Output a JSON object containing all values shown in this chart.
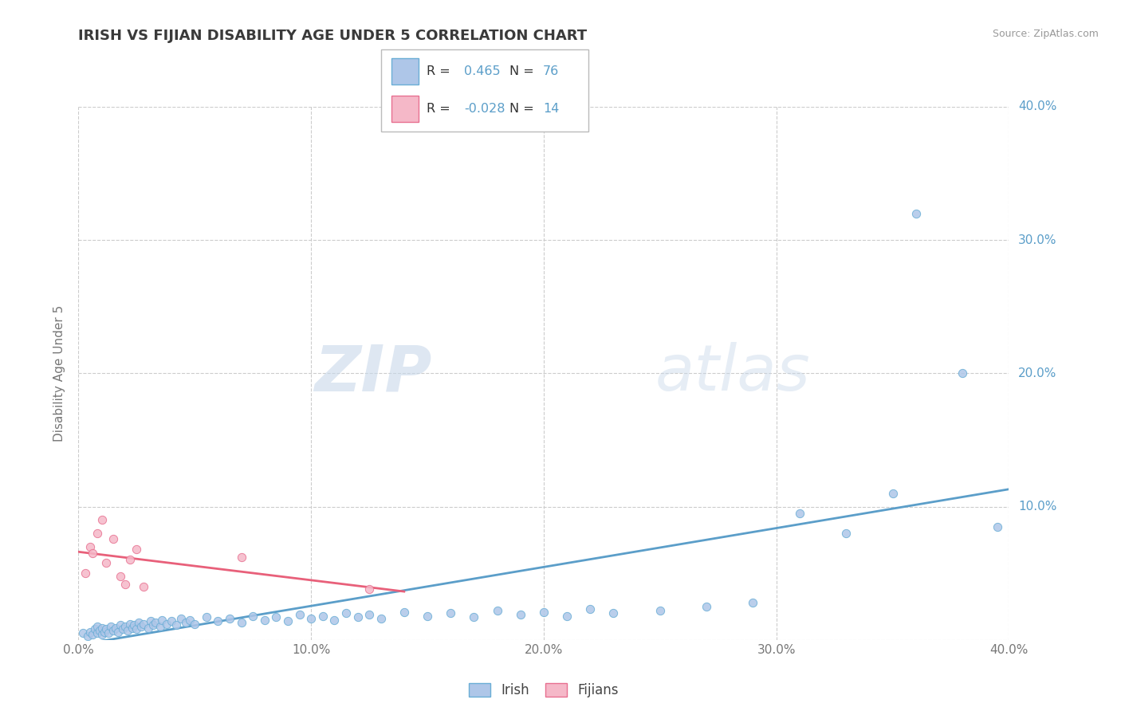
{
  "title": "IRISH VS FIJIAN DISABILITY AGE UNDER 5 CORRELATION CHART",
  "source": "Source: ZipAtlas.com",
  "ylabel": "Disability Age Under 5",
  "xlim": [
    0.0,
    0.4
  ],
  "ylim": [
    0.0,
    0.4
  ],
  "xtick_labels": [
    "0.0%",
    "10.0%",
    "20.0%",
    "30.0%",
    "40.0%"
  ],
  "ytick_labels": [
    "",
    "10.0%",
    "20.0%",
    "30.0%",
    "40.0%"
  ],
  "xtick_vals": [
    0.0,
    0.1,
    0.2,
    0.3,
    0.4
  ],
  "ytick_vals": [
    0.0,
    0.1,
    0.2,
    0.3,
    0.4
  ],
  "irish_color": "#aec6e8",
  "fijian_color": "#f5b8c8",
  "irish_edge_color": "#6aaed6",
  "fijian_edge_color": "#e87090",
  "irish_line_color": "#5b9ec9",
  "fijian_line_color": "#e8607a",
  "R_irish": 0.465,
  "N_irish": 76,
  "R_fijian": -0.028,
  "N_fijian": 14,
  "legend_irish": "Irish",
  "legend_fijian": "Fijians",
  "watermark_zip": "ZIP",
  "watermark_atlas": "atlas",
  "title_color": "#3a3a3a",
  "source_color": "#999999",
  "ylabel_color": "#777777",
  "ytick_color": "#5b9ec9",
  "xtick_color": "#777777",
  "grid_color": "#cccccc",
  "irish_x": [
    0.002,
    0.004,
    0.005,
    0.006,
    0.007,
    0.008,
    0.008,
    0.009,
    0.01,
    0.01,
    0.011,
    0.012,
    0.013,
    0.014,
    0.015,
    0.016,
    0.017,
    0.018,
    0.019,
    0.02,
    0.021,
    0.022,
    0.023,
    0.024,
    0.025,
    0.026,
    0.027,
    0.028,
    0.03,
    0.031,
    0.032,
    0.033,
    0.035,
    0.036,
    0.038,
    0.04,
    0.042,
    0.044,
    0.046,
    0.048,
    0.05,
    0.055,
    0.06,
    0.065,
    0.07,
    0.075,
    0.08,
    0.085,
    0.09,
    0.095,
    0.1,
    0.105,
    0.11,
    0.115,
    0.12,
    0.125,
    0.13,
    0.14,
    0.15,
    0.16,
    0.17,
    0.18,
    0.19,
    0.2,
    0.21,
    0.22,
    0.23,
    0.25,
    0.27,
    0.29,
    0.31,
    0.33,
    0.35,
    0.36,
    0.38,
    0.395
  ],
  "irish_y": [
    0.005,
    0.003,
    0.006,
    0.004,
    0.008,
    0.005,
    0.01,
    0.007,
    0.004,
    0.009,
    0.006,
    0.008,
    0.005,
    0.01,
    0.007,
    0.009,
    0.006,
    0.011,
    0.008,
    0.01,
    0.007,
    0.012,
    0.009,
    0.011,
    0.008,
    0.013,
    0.01,
    0.012,
    0.009,
    0.014,
    0.011,
    0.013,
    0.01,
    0.015,
    0.012,
    0.014,
    0.011,
    0.016,
    0.013,
    0.015,
    0.012,
    0.017,
    0.014,
    0.016,
    0.013,
    0.018,
    0.015,
    0.017,
    0.014,
    0.019,
    0.016,
    0.018,
    0.015,
    0.02,
    0.017,
    0.019,
    0.016,
    0.021,
    0.018,
    0.02,
    0.017,
    0.022,
    0.019,
    0.021,
    0.018,
    0.023,
    0.02,
    0.022,
    0.025,
    0.028,
    0.095,
    0.08,
    0.11,
    0.32,
    0.2,
    0.085
  ],
  "fijian_x": [
    0.003,
    0.005,
    0.006,
    0.008,
    0.01,
    0.012,
    0.015,
    0.018,
    0.02,
    0.022,
    0.025,
    0.028,
    0.07,
    0.125
  ],
  "fijian_y": [
    0.05,
    0.07,
    0.065,
    0.08,
    0.09,
    0.058,
    0.076,
    0.048,
    0.042,
    0.06,
    0.068,
    0.04,
    0.062,
    0.038
  ]
}
